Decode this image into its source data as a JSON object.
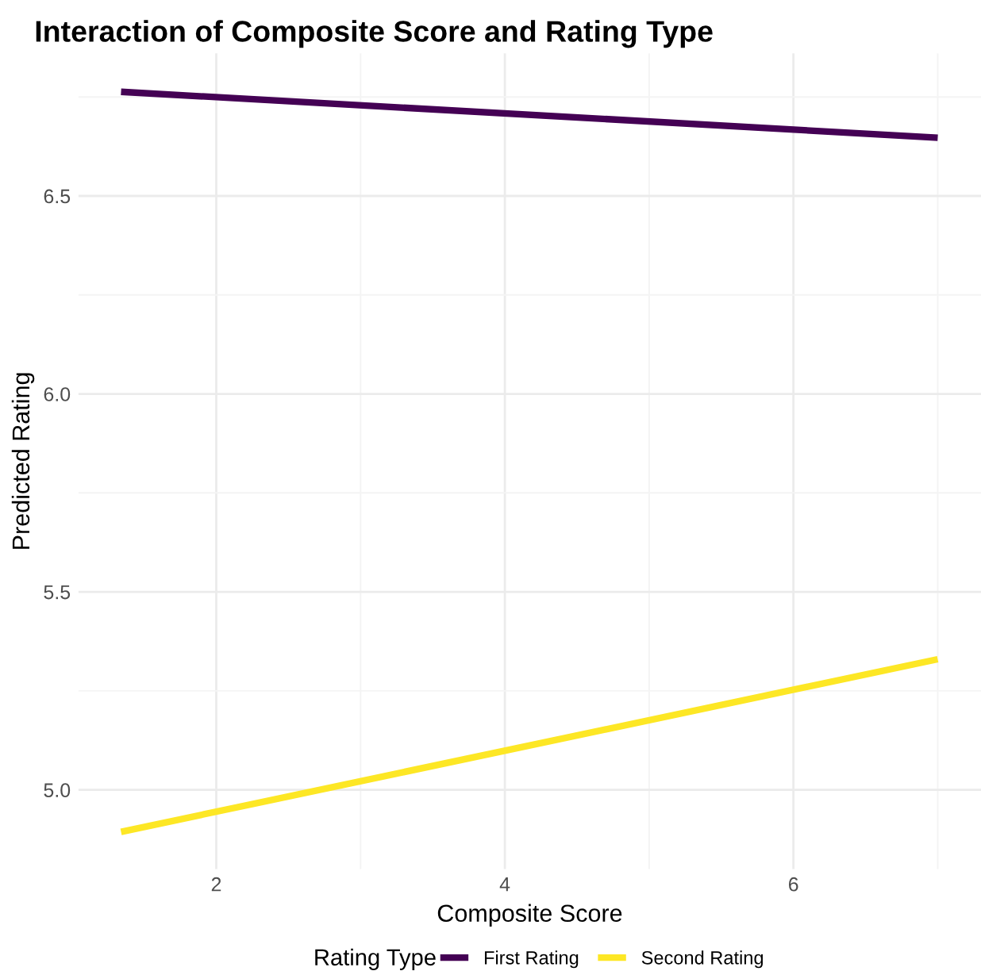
{
  "chart_data": {
    "type": "line",
    "title": "Interaction of Composite Score and Rating Type",
    "xlabel": "Composite Score",
    "ylabel": "Predicted Rating",
    "legend_title": "Rating Type",
    "series": [
      {
        "name": "First Rating",
        "color": "#440154",
        "values": [
          6.763,
          6.647
        ]
      },
      {
        "name": "Second Rating",
        "color": "#fde725",
        "values": [
          4.894,
          5.33
        ]
      }
    ],
    "x": [
      1.34,
      7.0
    ],
    "xlim": [
      1.045,
      7.3
    ],
    "ylim": [
      4.8,
      6.86
    ],
    "xticks": [
      2,
      {
        "value": 3,
        "label": null
      },
      4,
      {
        "value": 5,
        "label": null
      },
      6,
      {
        "value": 7,
        "label": null
      }
    ],
    "yticks": [
      {
        "value": 5.0,
        "label": "5.0"
      },
      {
        "value": 5.25,
        "label": null
      },
      5.5,
      {
        "value": 5.75,
        "label": null
      },
      {
        "value": 6.0,
        "label": "6.0"
      },
      {
        "value": 6.25,
        "label": null
      },
      6.5,
      {
        "value": 6.75,
        "label": null
      }
    ],
    "grid": true,
    "legend": "bottom",
    "line_style": "solid",
    "marker": "none"
  }
}
